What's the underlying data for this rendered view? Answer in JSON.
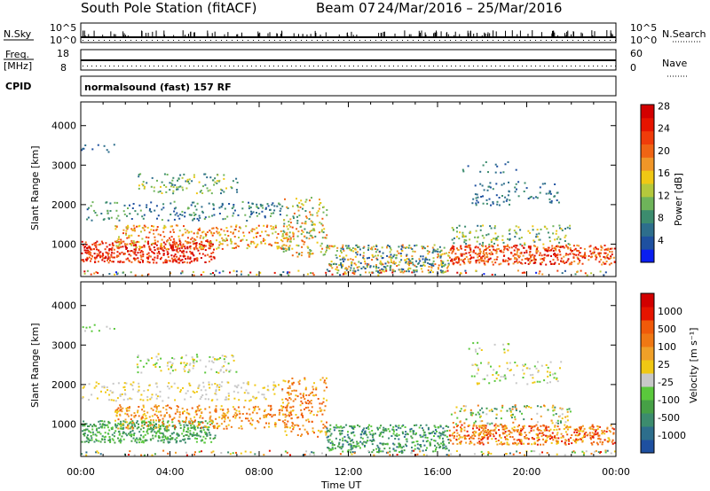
{
  "header": {
    "title": "South Pole Station (fitACF)",
    "beam": "Beam 07",
    "dates": "24/Mar/2016 – 25/Mar/2016"
  },
  "params": {
    "nsky_label": "N.Sky",
    "nsearch_label": "N.Search",
    "nsky_ticks": [
      "10^5",
      "10^0"
    ],
    "nsearch_ticks": [
      "10^5",
      "10^0"
    ],
    "freq_label": "Freq.",
    "freq_unit": "[MHz]",
    "freq_ticks": [
      "18",
      "8"
    ],
    "nave_label": "Nave",
    "nave_ticks": [
      "60",
      "0"
    ],
    "cpid_label": "CPID",
    "cpid_text": "normalsound (fast) 157 RF"
  },
  "chart_data": [
    {
      "type": "heatmap",
      "name": "power",
      "ylabel": "Slant Range [km]",
      "yticks": [
        1000,
        2000,
        3000,
        4000
      ],
      "ylim": [
        180,
        4600
      ],
      "xticks": [
        "00:00",
        "04:00",
        "08:00",
        "12:00",
        "16:00",
        "20:00",
        "00:00"
      ],
      "xlim_hours": [
        0,
        24
      ],
      "colorbar": {
        "label": "Power [dB]",
        "ticks": [
          "4",
          "8",
          "12",
          "16",
          "20",
          "24",
          "28"
        ],
        "colors": [
          "#0a1ef0",
          "#1e50a0",
          "#2d6e8c",
          "#3c8c6e",
          "#6eb45a",
          "#b4c83c",
          "#f0c814",
          "#f09628",
          "#f06414",
          "#f03c0a",
          "#e61400",
          "#d20000"
        ]
      }
    },
    {
      "type": "heatmap",
      "name": "velocity",
      "ylabel": "Slant Range [km]",
      "yticks": [
        1000,
        2000,
        3000,
        4000
      ],
      "ylim": [
        180,
        4600
      ],
      "xticks": [
        "00:00",
        "04:00",
        "08:00",
        "12:00",
        "16:00",
        "20:00",
        "00:00"
      ],
      "xlabel": "Time UT",
      "xlim_hours": [
        0,
        24
      ],
      "colorbar": {
        "label": "Velocity [m s⁻¹]",
        "ticks": [
          "1000",
          "500",
          "100",
          "25",
          "-25",
          "-100",
          "-500",
          "-1000"
        ],
        "colors": [
          "#1e50a0",
          "#2d6e8c",
          "#3c8c6e",
          "#46a046",
          "#5ac83c",
          "#c8c8c8",
          "#f0c814",
          "#f0a028",
          "#f07814",
          "#f05a0a",
          "#e61400",
          "#d20000"
        ]
      }
    }
  ]
}
